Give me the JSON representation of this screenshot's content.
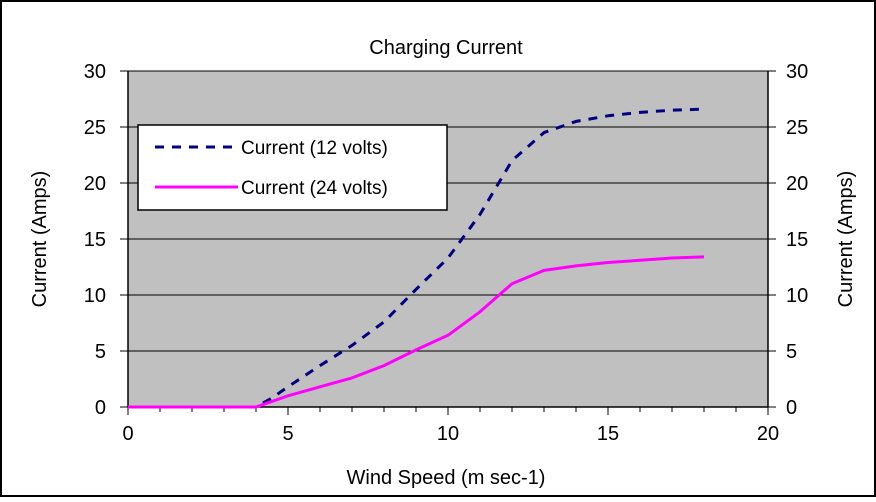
{
  "chart_data": {
    "type": "line",
    "title": "Charging Current",
    "xlabel": "Wind Speed (m sec-1)",
    "ylabel": "Current (Amps)",
    "ylabel_right": "Current (Amps)",
    "xlim": [
      0,
      20
    ],
    "ylim": [
      0,
      30
    ],
    "x_ticks": [
      0,
      5,
      10,
      15,
      20
    ],
    "y_ticks": [
      0,
      5,
      10,
      15,
      20,
      25,
      30
    ],
    "grid": true,
    "legend_position": "upper-left",
    "plot_background": "#c0c0c0",
    "series": [
      {
        "name": "Current (12 volts)",
        "color": "#000080",
        "style": "dashed",
        "x": [
          0,
          1,
          2,
          3,
          4,
          4.5,
          5,
          6,
          7,
          8,
          9,
          10,
          11,
          12,
          13,
          14,
          15,
          16,
          17,
          18
        ],
        "y": [
          0,
          0,
          0,
          0,
          0,
          0.8,
          1.8,
          3.7,
          5.5,
          7.6,
          10.5,
          13.3,
          17.2,
          22.0,
          24.5,
          25.5,
          26.0,
          26.3,
          26.5,
          26.6
        ]
      },
      {
        "name": "Current (24 volts)",
        "color": "#ff00ff",
        "style": "solid",
        "x": [
          0,
          1,
          2,
          3,
          4,
          5,
          6,
          7,
          8,
          9,
          10,
          11,
          12,
          13,
          14,
          15,
          16,
          17,
          18
        ],
        "y": [
          0,
          0,
          0,
          0,
          0,
          1.0,
          1.8,
          2.6,
          3.7,
          5.1,
          6.4,
          8.5,
          11.0,
          12.2,
          12.6,
          12.9,
          13.1,
          13.3,
          13.4
        ]
      }
    ]
  }
}
